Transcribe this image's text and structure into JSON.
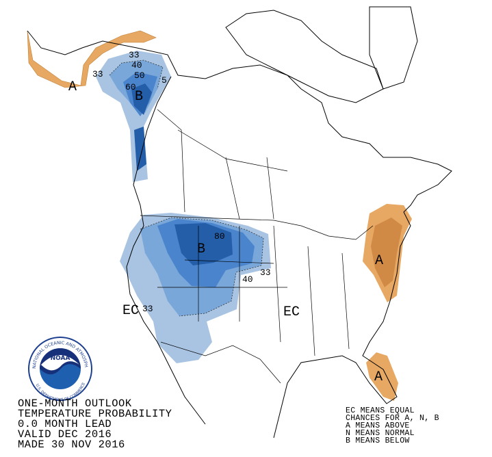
{
  "outlook_text": [
    "ONE-MONTH OUTLOOK",
    "TEMPERATURE PROBABILITY",
    "0.0 MONTH LEAD",
    "VALID DEC 2016",
    "MADE 30 NOV 2016"
  ],
  "legend_text": [
    "EC MEANS EQUAL",
    "CHANCES FOR A, N, B",
    "A MEANS ABOVE",
    "N MEANS NORMAL",
    "B MEANS BELOW"
  ],
  "logo": {
    "name": "NOAA",
    "ring_text": "NATIONAL OCEANIC AND ATMOSPHERIC ADMINISTRATION",
    "dept_text": "U.S. DEPARTMENT OF COMMERCE"
  },
  "map_labels": [
    "A",
    "33",
    "33",
    "40",
    "50",
    "5",
    "60",
    "B",
    "B",
    "80",
    "40",
    "33",
    "EC",
    "33",
    "EC",
    "A",
    "A"
  ]
}
